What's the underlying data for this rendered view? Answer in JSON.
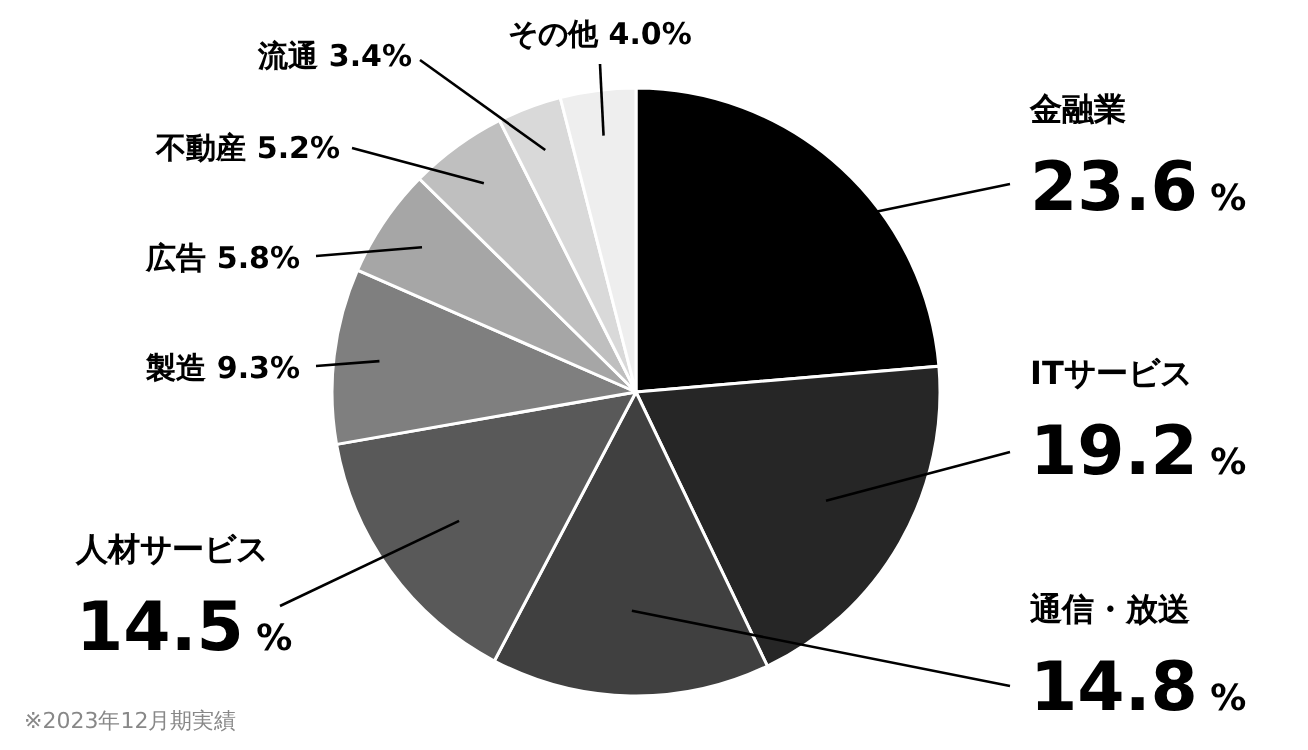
{
  "chart_data": {
    "type": "pie",
    "categories": [
      "金融業",
      "ITサービス",
      "通信・放送",
      "人材サービス",
      "製造",
      "広告",
      "不動産",
      "流通",
      "その他"
    ],
    "values": [
      23.6,
      19.2,
      14.8,
      14.5,
      9.3,
      5.8,
      5.2,
      3.4,
      4.0
    ],
    "value_labels": [
      "23.6 %",
      "19.2 %",
      "14.8 %",
      "14.5 %",
      "9.3%",
      "5.8%",
      "5.2%",
      "3.4%",
      "4.0%"
    ],
    "colors": [
      "#000000",
      "#262626",
      "#404040",
      "#595959",
      "#7f7f7f",
      "#a6a6a6",
      "#bfbfbf",
      "#d9d9d9",
      "#eeeeee"
    ],
    "annotations": [
      "※2023年12月期実績"
    ],
    "legend": false
  }
}
